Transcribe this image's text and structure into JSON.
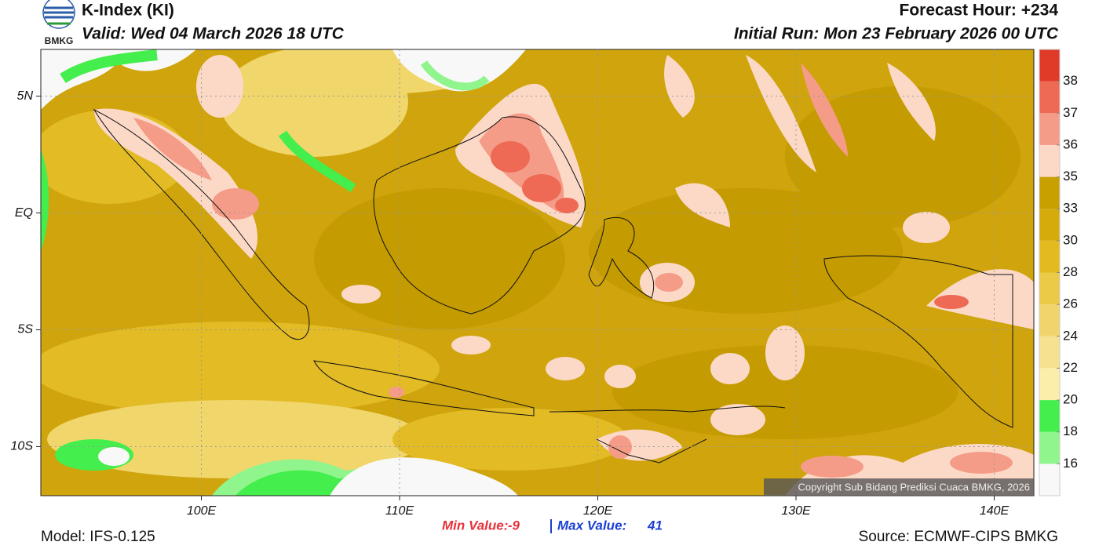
{
  "header": {
    "logo_text": "BMKG",
    "title": "K-Index (KI)",
    "valid": "Valid: Wed 04 March 2026 18 UTC",
    "forecast_hour": "Forecast Hour: +234",
    "initial_run": "Initial Run: Mon 23 February 2026 00 UTC"
  },
  "map": {
    "xlim": [
      91.9,
      142.0
    ],
    "ylim": [
      -12.1,
      7.0
    ],
    "xticks": [
      {
        "value": 100,
        "label": "100E"
      },
      {
        "value": 110,
        "label": "110E"
      },
      {
        "value": 120,
        "label": "120E"
      },
      {
        "value": 130,
        "label": "130E"
      },
      {
        "value": 140,
        "label": "140E"
      }
    ],
    "yticks": [
      {
        "value": 5,
        "label": "5N"
      },
      {
        "value": 0,
        "label": "EQ"
      },
      {
        "value": -5,
        "label": "5S"
      },
      {
        "value": -10,
        "label": "10S"
      }
    ],
    "grid": true,
    "copyright": "Copyright Sub Bidang Prediksi Cuaca BMKG, 2026"
  },
  "colorbar": {
    "levels": [
      16,
      18,
      20,
      22,
      24,
      26,
      28,
      30,
      33,
      35,
      36,
      37,
      38
    ],
    "colors": [
      "#f8f8f8",
      "#90f58c",
      "#44ee4c",
      "#fbeeaa",
      "#f6e190",
      "#f1d56c",
      "#ebca48",
      "#e3bb20",
      "#d4ab0a",
      "#c8a000",
      "#fcd9c7",
      "#f59c88",
      "#ee6a55",
      "#e03a28"
    ]
  },
  "footer": {
    "min_label": "Min Value:",
    "min_value": "-9",
    "max_label": "Max Value:",
    "max_value": "41",
    "model": "Model: IFS-0.125",
    "source": "Source: ECMWF-CIPS BMKG"
  }
}
